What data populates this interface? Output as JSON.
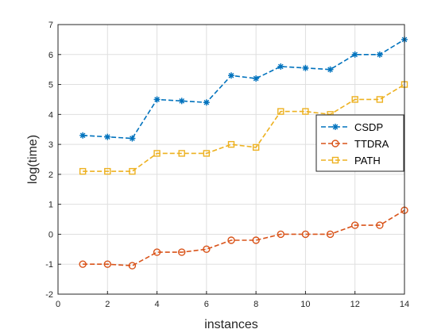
{
  "chart_data": {
    "type": "line",
    "title": "",
    "xlabel": "instances",
    "ylabel": "log(time)",
    "xlim": [
      0,
      14
    ],
    "ylim": [
      -2,
      7
    ],
    "xticks": [
      "0",
      "2",
      "4",
      "6",
      "8",
      "10",
      "12",
      "14"
    ],
    "yticks": [
      "-2",
      "-1",
      "0",
      "1",
      "2",
      "3",
      "4",
      "5",
      "6",
      "7"
    ],
    "grid": true,
    "legend_position": "right",
    "x": [
      1,
      2,
      3,
      4,
      5,
      6,
      7,
      8,
      9,
      10,
      11,
      12,
      13,
      14
    ],
    "series": [
      {
        "name": "CSDP",
        "color": "#0072BD",
        "marker": "asterisk",
        "line_style": "dashed",
        "values": [
          3.3,
          3.25,
          3.2,
          4.5,
          4.45,
          4.4,
          5.3,
          5.2,
          5.6,
          5.55,
          5.5,
          6.0,
          6.0,
          6.5
        ]
      },
      {
        "name": "TTDRA",
        "color": "#D95319",
        "marker": "circle",
        "line_style": "dashed",
        "values": [
          -1.0,
          -1.0,
          -1.05,
          -0.6,
          -0.6,
          -0.5,
          -0.2,
          -0.2,
          0.0,
          0.0,
          0.0,
          0.3,
          0.3,
          0.8
        ]
      },
      {
        "name": "PATH",
        "color": "#EDB120",
        "marker": "square",
        "line_style": "dashed",
        "values": [
          2.1,
          2.1,
          2.1,
          2.7,
          2.7,
          2.7,
          3.0,
          2.9,
          4.1,
          4.1,
          4.0,
          4.5,
          4.5,
          5.0
        ]
      }
    ]
  }
}
